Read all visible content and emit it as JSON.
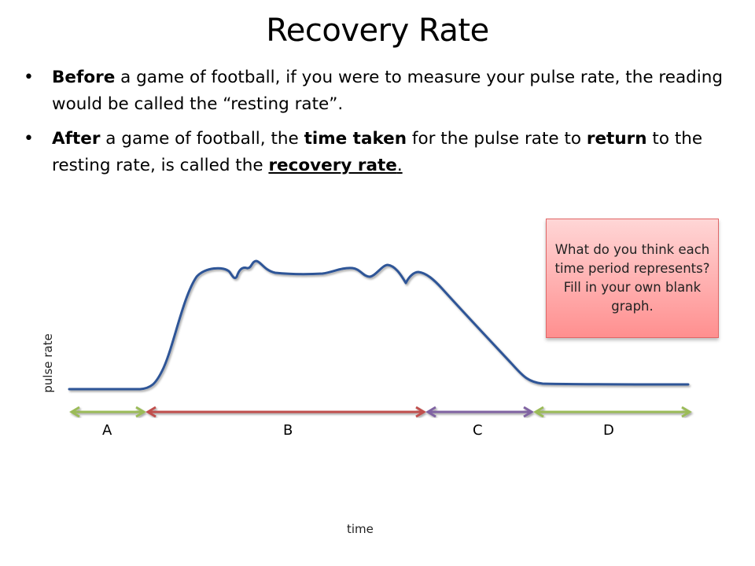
{
  "title": "Recovery Rate",
  "bullets": [
    {
      "b1": "Before",
      "t1": " a game of football, if you were to measure your pulse rate, the reading would be called the “resting rate”."
    },
    {
      "b1": "After",
      "t1": " a game of football, the ",
      "b2": "time taken",
      "t2": " for the pulse rate to ",
      "b3": "return",
      "t3": " to the resting rate, is called the ",
      "b4": "recovery rate",
      "t4": "."
    }
  ],
  "callout": "What do you think each time period represents? Fill in your own blank graph.",
  "graph": {
    "y_axis_label": "pulse rate",
    "x_axis_label": "time",
    "periods": [
      {
        "label": "A",
        "color": "#9bbb59"
      },
      {
        "label": "B",
        "color": "#c0504d"
      },
      {
        "label": "C",
        "color": "#8064a2"
      },
      {
        "label": "D",
        "color": "#9bbb59"
      }
    ],
    "curve_color": "#2f5597"
  }
}
